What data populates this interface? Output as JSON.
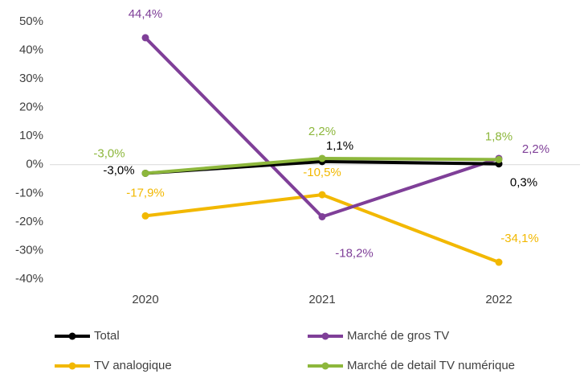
{
  "chart_data": {
    "type": "line",
    "categories": [
      "2020",
      "2021",
      "2022"
    ],
    "series": [
      {
        "name": "Total",
        "color": "#000000",
        "values": [
          -3.0,
          1.1,
          0.3
        ],
        "value_labels": [
          "-3,0%",
          "1,1%",
          "0,3%"
        ]
      },
      {
        "name": "Marché de gros TV",
        "color": "#7f3f98",
        "values": [
          44.4,
          -18.2,
          2.2
        ],
        "value_labels": [
          "44,4%",
          "-18,2%",
          "2,2%"
        ]
      },
      {
        "name": "TV analogique",
        "color": "#f2b800",
        "values": [
          -17.9,
          -10.5,
          -34.1
        ],
        "value_labels": [
          "-17,9%",
          "-10,5%",
          "-34,1%"
        ]
      },
      {
        "name": "Marché de detail TV numérique",
        "color": "#8db73c",
        "values": [
          -3.0,
          2.2,
          1.8
        ],
        "value_labels": [
          "-3,0%",
          "2,2%",
          "1,8%"
        ]
      }
    ],
    "ylim": [
      -40,
      50
    ],
    "yticks": [
      {
        "value": -40,
        "label": "-40%"
      },
      {
        "value": -30,
        "label": "-30%"
      },
      {
        "value": -20,
        "label": "-20%"
      },
      {
        "value": -10,
        "label": "-10%"
      },
      {
        "value": 0,
        "label": "0%"
      },
      {
        "value": 10,
        "label": "10%"
      },
      {
        "value": 20,
        "label": "20%"
      },
      {
        "value": 30,
        "label": "30%"
      },
      {
        "value": 40,
        "label": "40%"
      },
      {
        "value": 50,
        "label": "50%"
      }
    ],
    "grid": false
  }
}
